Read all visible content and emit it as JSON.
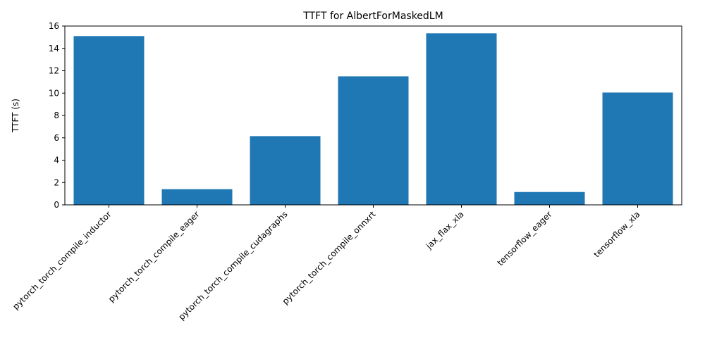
{
  "chart_data": {
    "type": "bar",
    "title": "TTFT for AlbertForMaskedLM",
    "xlabel": "",
    "ylabel": "TTFT (s)",
    "categories": [
      "pytorch_torch_compile_inductor",
      "pytorch_torch_compile_eager",
      "pytorch_torch_compile_cudagraphs",
      "pytorch_torch_compile_onnxrt",
      "jax_flax_xla",
      "tensorflow_eager",
      "tensorflow_xla"
    ],
    "values": [
      15.1,
      1.4,
      6.15,
      11.5,
      15.35,
      1.15,
      10.05
    ],
    "ylim": [
      0,
      16
    ],
    "yticks": [
      0,
      2,
      4,
      6,
      8,
      10,
      12,
      14,
      16
    ],
    "ytick_labels": [
      "0",
      "2",
      "4",
      "6",
      "8",
      "10",
      "12",
      "14",
      "16"
    ],
    "grid": false,
    "bar_color": "#1f77b4",
    "x_tick_rotation_deg": 45
  }
}
